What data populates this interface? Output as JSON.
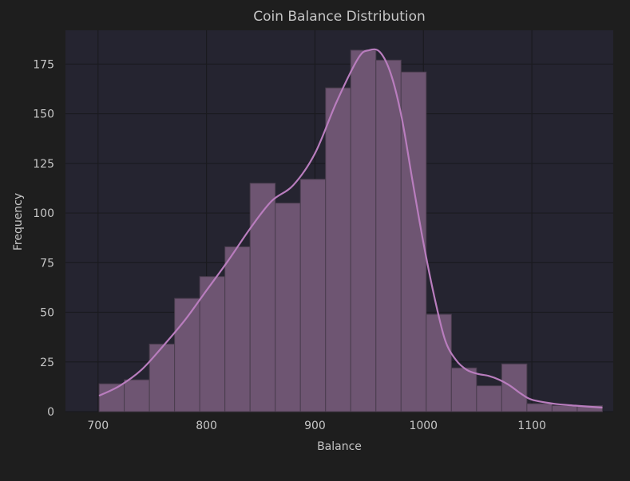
{
  "chart_data": {
    "type": "bar",
    "title": "Coin Balance Distribution",
    "xlabel": "Balance",
    "ylabel": "Frequency",
    "xlim": [
      670,
      1175
    ],
    "ylim": [
      0,
      192
    ],
    "xticks": [
      700,
      800,
      900,
      1000,
      1100
    ],
    "yticks": [
      0,
      25,
      50,
      75,
      100,
      125,
      150,
      175
    ],
    "grid": true,
    "legend": "none",
    "bin_edges": [
      701,
      724.2,
      747.4,
      770.6,
      793.8,
      817,
      840.2,
      863.4,
      886.6,
      909.8,
      933,
      956.2,
      979.4,
      1002.6,
      1025.8,
      1049,
      1072.2,
      1095.4,
      1118.6,
      1141.8,
      1165
    ],
    "values": [
      14,
      16,
      34,
      57,
      68,
      83,
      115,
      105,
      117,
      163,
      182,
      177,
      171,
      49,
      22,
      13,
      24,
      4,
      3,
      3
    ],
    "kde": {
      "x": [
        701,
        720,
        740,
        760,
        780,
        800,
        820,
        840,
        860,
        880,
        900,
        920,
        940,
        950,
        960,
        970,
        980,
        990,
        1000,
        1010,
        1020,
        1030,
        1040,
        1050,
        1060,
        1070,
        1080,
        1090,
        1100,
        1120,
        1140,
        1165
      ],
      "y": [
        8,
        13,
        21,
        33,
        46,
        61,
        76,
        92,
        106,
        114,
        130,
        156,
        178,
        182,
        181,
        170,
        148,
        116,
        85,
        58,
        36,
        26,
        21,
        19,
        18,
        16,
        13,
        9,
        6,
        4,
        3,
        2
      ]
    },
    "colors": {
      "background": "#1e1e1e",
      "plot_background": "#252430",
      "bar_fill": "#6e5572",
      "bar_edge": "#4a3d4e",
      "kde_line": "#b97dbe",
      "grid": "#1a1a1f",
      "text": "#c6c6c6"
    }
  }
}
